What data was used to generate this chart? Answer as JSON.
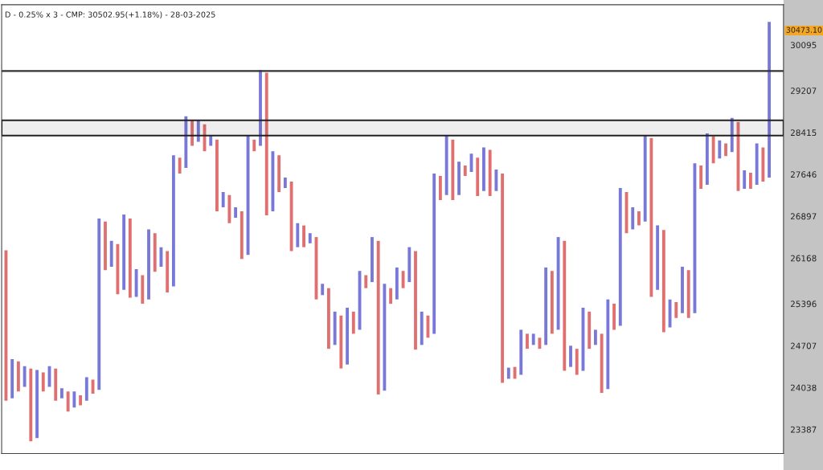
{
  "chart_data": {
    "type": "candlestick",
    "title": "D - 0.25% x 3 - CMP: 30502.95(+1.18%) - 28-03-2025",
    "categories": [
      null,
      null,
      null,
      null,
      null,
      null,
      null,
      null,
      null,
      null,
      null,
      null,
      null,
      null,
      null,
      null,
      null,
      null,
      null,
      null,
      null,
      null,
      null,
      null,
      null,
      null,
      null,
      null,
      null,
      null,
      null,
      null,
      null,
      null,
      null,
      null,
      null,
      null,
      null,
      null,
      null,
      null,
      null,
      null,
      null,
      null,
      null,
      null,
      null,
      null,
      null,
      null,
      null,
      null,
      null,
      null,
      null,
      null,
      null,
      null,
      null,
      null,
      null,
      null,
      null,
      null,
      null,
      null,
      null,
      null,
      null,
      null,
      null,
      null,
      null,
      null,
      null,
      null,
      null,
      null,
      null,
      null,
      null,
      null,
      null,
      null,
      null,
      null,
      null,
      null,
      null,
      null,
      null,
      null,
      null,
      null,
      null,
      null,
      null,
      null,
      null,
      null,
      null,
      null,
      null,
      null,
      null,
      null,
      null,
      null,
      null,
      null,
      null,
      null,
      null,
      null,
      null,
      null,
      null,
      null,
      null,
      null,
      null,
      null
    ],
    "ohlc": [
      [
        26303,
        26303,
        23833,
        23833
      ],
      [
        23869,
        24492,
        23869,
        24492
      ],
      [
        24455,
        24455,
        23978,
        23978
      ],
      [
        24051,
        24379,
        24051,
        24379
      ],
      [
        24341,
        24341,
        23206,
        23206
      ],
      [
        23254,
        24316,
        23254,
        24316
      ],
      [
        24278,
        24278,
        23978,
        23978
      ],
      [
        24051,
        24379,
        24051,
        24379
      ],
      [
        24341,
        24341,
        23833,
        23833
      ],
      [
        23869,
        24026,
        23869,
        24026
      ],
      [
        23978,
        23978,
        23664,
        23664
      ],
      [
        23724,
        23978,
        23724,
        23978
      ],
      [
        23917,
        23917,
        23761,
        23761
      ],
      [
        23833,
        24202,
        23833,
        24202
      ],
      [
        24164,
        24164,
        23942,
        23942
      ],
      [
        24002,
        26857,
        24002,
        26857
      ],
      [
        26802,
        26802,
        25964,
        25964
      ],
      [
        26022,
        26465,
        26022,
        26465
      ],
      [
        26411,
        26411,
        25556,
        25556
      ],
      [
        25629,
        26926,
        25629,
        26926
      ],
      [
        26857,
        26857,
        25498,
        25498
      ],
      [
        25512,
        25978,
        25512,
        25978
      ],
      [
        25877,
        25877,
        25396,
        25396
      ],
      [
        25469,
        26667,
        25469,
        26667
      ],
      [
        26600,
        26600,
        25935,
        25935
      ],
      [
        26022,
        26357,
        26022,
        26357
      ],
      [
        26289,
        26289,
        25585,
        25585
      ],
      [
        25687,
        27994,
        25687,
        27994
      ],
      [
        27951,
        27951,
        27660,
        27660
      ],
      [
        27762,
        28719,
        27762,
        28719
      ],
      [
        28643,
        28643,
        28168,
        28168
      ],
      [
        28241,
        28643,
        28241,
        28643
      ],
      [
        28567,
        28567,
        28067,
        28067
      ],
      [
        28168,
        28357,
        28168,
        28357
      ],
      [
        28284,
        28284,
        26984,
        26984
      ],
      [
        27056,
        27329,
        27056,
        27329
      ],
      [
        27272,
        27272,
        26775,
        26775
      ],
      [
        26870,
        27056,
        26870,
        27056
      ],
      [
        26984,
        26984,
        26153,
        26153
      ],
      [
        26222,
        28357,
        26222,
        28357
      ],
      [
        28284,
        28284,
        28067,
        28067
      ],
      [
        28168,
        29602,
        28168,
        29602
      ],
      [
        29552,
        29552,
        26912,
        26912
      ],
      [
        26984,
        28067,
        26984,
        28067
      ],
      [
        27994,
        27994,
        27329,
        27329
      ],
      [
        27401,
        27588,
        27401,
        27588
      ],
      [
        27516,
        27516,
        26289,
        26289
      ],
      [
        26357,
        26775,
        26357,
        26775
      ],
      [
        26735,
        26735,
        26357,
        26357
      ],
      [
        26424,
        26600,
        26424,
        26600
      ],
      [
        26532,
        26532,
        25469,
        25469
      ],
      [
        25541,
        25731,
        25541,
        25731
      ],
      [
        25658,
        25658,
        24657,
        24657
      ],
      [
        24720,
        25266,
        24720,
        25266
      ],
      [
        25201,
        25201,
        24341,
        24341
      ],
      [
        24404,
        25331,
        24404,
        25331
      ],
      [
        25266,
        25266,
        24902,
        24902
      ],
      [
        24967,
        25949,
        24967,
        25949
      ],
      [
        25877,
        25877,
        25658,
        25658
      ],
      [
        25760,
        26532,
        25760,
        26532
      ],
      [
        26465,
        26465,
        23929,
        23929
      ],
      [
        23990,
        25731,
        23990,
        25731
      ],
      [
        25658,
        25658,
        25396,
        25396
      ],
      [
        25469,
        26008,
        25469,
        26008
      ],
      [
        25949,
        25949,
        25658,
        25658
      ],
      [
        25760,
        26357,
        25760,
        26357
      ],
      [
        26289,
        26289,
        24644,
        24644
      ],
      [
        24720,
        25266,
        24720,
        25266
      ],
      [
        25201,
        25201,
        24837,
        24837
      ],
      [
        24902,
        27660,
        24902,
        27660
      ],
      [
        27617,
        27617,
        27185,
        27185
      ],
      [
        27272,
        28357,
        27272,
        28357
      ],
      [
        28284,
        28284,
        27185,
        27185
      ],
      [
        27272,
        27878,
        27272,
        27878
      ],
      [
        27806,
        27806,
        27617,
        27617
      ],
      [
        27690,
        28023,
        27690,
        28023
      ],
      [
        27951,
        27951,
        27257,
        27257
      ],
      [
        27344,
        28139,
        27344,
        28139
      ],
      [
        28096,
        28096,
        27257,
        27257
      ],
      [
        27344,
        27733,
        27344,
        27733
      ],
      [
        27660,
        27660,
        24114,
        24114
      ],
      [
        24177,
        24354,
        24177,
        24354
      ],
      [
        24366,
        24366,
        24177,
        24177
      ],
      [
        24240,
        24967,
        24240,
        24967
      ],
      [
        24902,
        24902,
        24657,
        24657
      ],
      [
        24720,
        24902,
        24720,
        24902
      ],
      [
        24837,
        24837,
        24657,
        24657
      ],
      [
        24720,
        26008,
        24720,
        26008
      ],
      [
        25949,
        25949,
        24902,
        24902
      ],
      [
        24967,
        26532,
        24967,
        26532
      ],
      [
        26465,
        26465,
        24303,
        24303
      ],
      [
        24366,
        24707,
        24366,
        24707
      ],
      [
        24657,
        24657,
        24240,
        24240
      ],
      [
        24303,
        25331,
        24303,
        25331
      ],
      [
        25266,
        25266,
        24657,
        24657
      ],
      [
        24720,
        24967,
        24720,
        24967
      ],
      [
        24902,
        24902,
        23954,
        23954
      ],
      [
        24014,
        25469,
        24014,
        25469
      ],
      [
        25396,
        25396,
        24967,
        24967
      ],
      [
        25032,
        27401,
        25032,
        27401
      ],
      [
        27329,
        27329,
        26600,
        26600
      ],
      [
        26667,
        27056,
        26667,
        27056
      ],
      [
        26984,
        26984,
        26735,
        26735
      ],
      [
        26802,
        28357,
        26802,
        28357
      ],
      [
        28313,
        28313,
        25512,
        25512
      ],
      [
        25629,
        26735,
        25629,
        26735
      ],
      [
        26654,
        26654,
        24928,
        24928
      ],
      [
        25006,
        25469,
        25006,
        25469
      ],
      [
        25424,
        25424,
        25162,
        25162
      ],
      [
        25240,
        26022,
        25240,
        26022
      ],
      [
        25964,
        25964,
        25162,
        25162
      ],
      [
        25240,
        27849,
        25240,
        27849
      ],
      [
        27806,
        27806,
        27387,
        27387
      ],
      [
        27459,
        28400,
        27459,
        28400
      ],
      [
        28342,
        28342,
        27849,
        27849
      ],
      [
        27936,
        28270,
        27936,
        28270
      ],
      [
        28212,
        28212,
        27980,
        27980
      ],
      [
        28052,
        28689,
        28052,
        28689
      ],
      [
        28613,
        28613,
        27344,
        27344
      ],
      [
        27387,
        27718,
        27387,
        27718
      ],
      [
        27675,
        27675,
        27387,
        27387
      ],
      [
        27459,
        28212,
        27459,
        28212
      ],
      [
        28139,
        28139,
        27516,
        27516
      ],
      [
        27588,
        30555,
        27588,
        30555
      ]
    ],
    "colors": [
      "#e07070",
      "#7878d8",
      "#e07070",
      "#7878d8",
      "#e07070",
      "#7878d8",
      "#e07070",
      "#7878d8",
      "#e07070",
      "#7878d8",
      "#e07070",
      "#7878d8",
      "#e07070",
      "#7878d8",
      "#e07070",
      "#7878d8",
      "#e07070",
      "#7878d8",
      "#e07070",
      "#7878d8",
      "#e07070",
      "#7878d8",
      "#e07070",
      "#7878d8",
      "#e07070",
      "#7878d8",
      "#e07070",
      "#7878d8",
      "#e07070",
      "#7878d8",
      "#e07070",
      "#7878d8",
      "#e07070",
      "#7878d8",
      "#e07070",
      "#7878d8",
      "#e07070",
      "#7878d8",
      "#e07070",
      "#7878d8",
      "#e07070",
      "#7878d8",
      "#e07070",
      "#7878d8",
      "#e07070",
      "#7878d8",
      "#e07070",
      "#7878d8",
      "#e07070",
      "#7878d8",
      "#e07070",
      "#7878d8",
      "#e07070",
      "#7878d8",
      "#e07070",
      "#7878d8",
      "#e07070",
      "#7878d8",
      "#e07070",
      "#7878d8",
      "#e07070",
      "#7878d8",
      "#e07070",
      "#7878d8",
      "#e07070",
      "#7878d8",
      "#e07070",
      "#7878d8",
      "#e07070",
      "#7878d8",
      "#e07070",
      "#7878d8",
      "#e07070",
      "#7878d8",
      "#e07070",
      "#7878d8",
      "#e07070",
      "#7878d8",
      "#e07070",
      "#7878d8",
      "#e07070",
      "#7878d8",
      "#e07070",
      "#7878d8",
      "#e07070",
      "#7878d8",
      "#e07070",
      "#7878d8",
      "#e07070",
      "#7878d8",
      "#e07070",
      "#7878d8",
      "#e07070",
      "#7878d8",
      "#e07070",
      "#7878d8",
      "#e07070",
      "#7878d8",
      "#e07070",
      "#7878d8",
      "#e07070",
      "#7878d8",
      "#e07070",
      "#7878d8",
      "#e07070",
      "#7878d8",
      "#e07070",
      "#7878d8",
      "#e07070",
      "#7878d8",
      "#e07070",
      "#7878d8",
      "#e07070",
      "#7878d8",
      "#e07070",
      "#7878d8",
      "#e07070",
      "#7878d8",
      "#e07070",
      "#7878d8",
      "#e07070",
      "#7878d8",
      "#e07070",
      "#7878d8"
    ],
    "log": "y",
    "ylim": [
      23020,
      30900
    ],
    "yticks": [
      23387,
      24038,
      24707,
      25396,
      26168,
      26897,
      27646,
      28415,
      29207,
      30095
    ],
    "tick_labels": "y",
    "grid": false,
    "ref_lines": [
      {
        "axis": "y",
        "value": 29585,
        "color": "#333333"
      }
    ],
    "bands": [
      {
        "axis": "y",
        "from": 28357,
        "to": 28643,
        "color": "#222222"
      }
    ],
    "annotations": [
      "30473.10"
    ]
  }
}
